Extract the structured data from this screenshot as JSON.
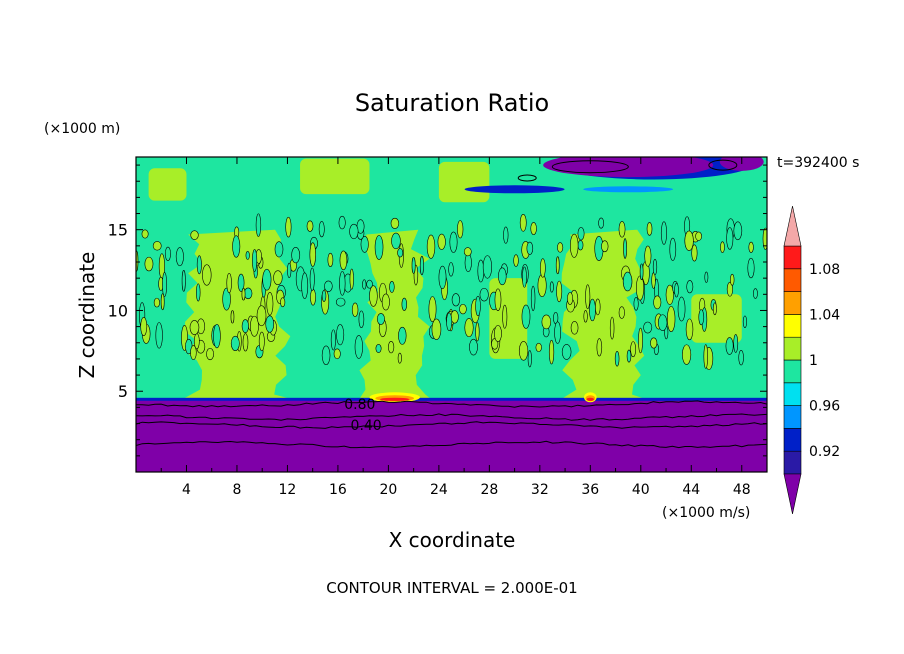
{
  "chart_data": {
    "type": "contour",
    "title": "Saturation Ratio",
    "xlabel": "X coordinate",
    "ylabel": "Z coordinate",
    "x_unit": "(×1000 m/s)",
    "y_unit": "(×1000 m)",
    "time_label": "t=392400 s",
    "footer": "CONTOUR INTERVAL = 2.000E-01",
    "xlim": [
      0,
      50
    ],
    "ylim": [
      0,
      19.5
    ],
    "x_ticks": [
      4,
      8,
      12,
      16,
      20,
      24,
      28,
      32,
      36,
      40,
      44,
      48
    ],
    "y_ticks": [
      5,
      10,
      15
    ],
    "contour_labels": [
      {
        "text": "0.80",
        "x": 16.5,
        "z": 4.2
      },
      {
        "text": "0.40",
        "x": 17.0,
        "z": 2.9
      }
    ],
    "colorbar": {
      "levels": [
        0.9,
        0.92,
        0.94,
        0.96,
        0.98,
        1.0,
        1.02,
        1.04,
        1.06,
        1.08,
        1.1
      ],
      "tick_labels": [
        "0.92",
        "0.96",
        "1",
        "1.04",
        "1.08"
      ],
      "colors": [
        "#7f00a8",
        "#2a1aa6",
        "#0020c8",
        "#0096ff",
        "#00e0f0",
        "#1ee6a0",
        "#a8ee28",
        "#ffff00",
        "#ffa000",
        "#ff5a00",
        "#ff1a1a",
        "#f4a8a8"
      ],
      "extend": "both"
    },
    "regions": {
      "dry_layer_top_z": 4.5,
      "lower_contours_z": [
        1.7,
        2.9,
        3.4,
        4.2
      ],
      "upper_dry_band_z": [
        18.0,
        19.5
      ],
      "supersaturated_patches_x": [
        [
          18.5,
          22.5
        ],
        [
          35.5,
          36.5
        ]
      ]
    }
  }
}
